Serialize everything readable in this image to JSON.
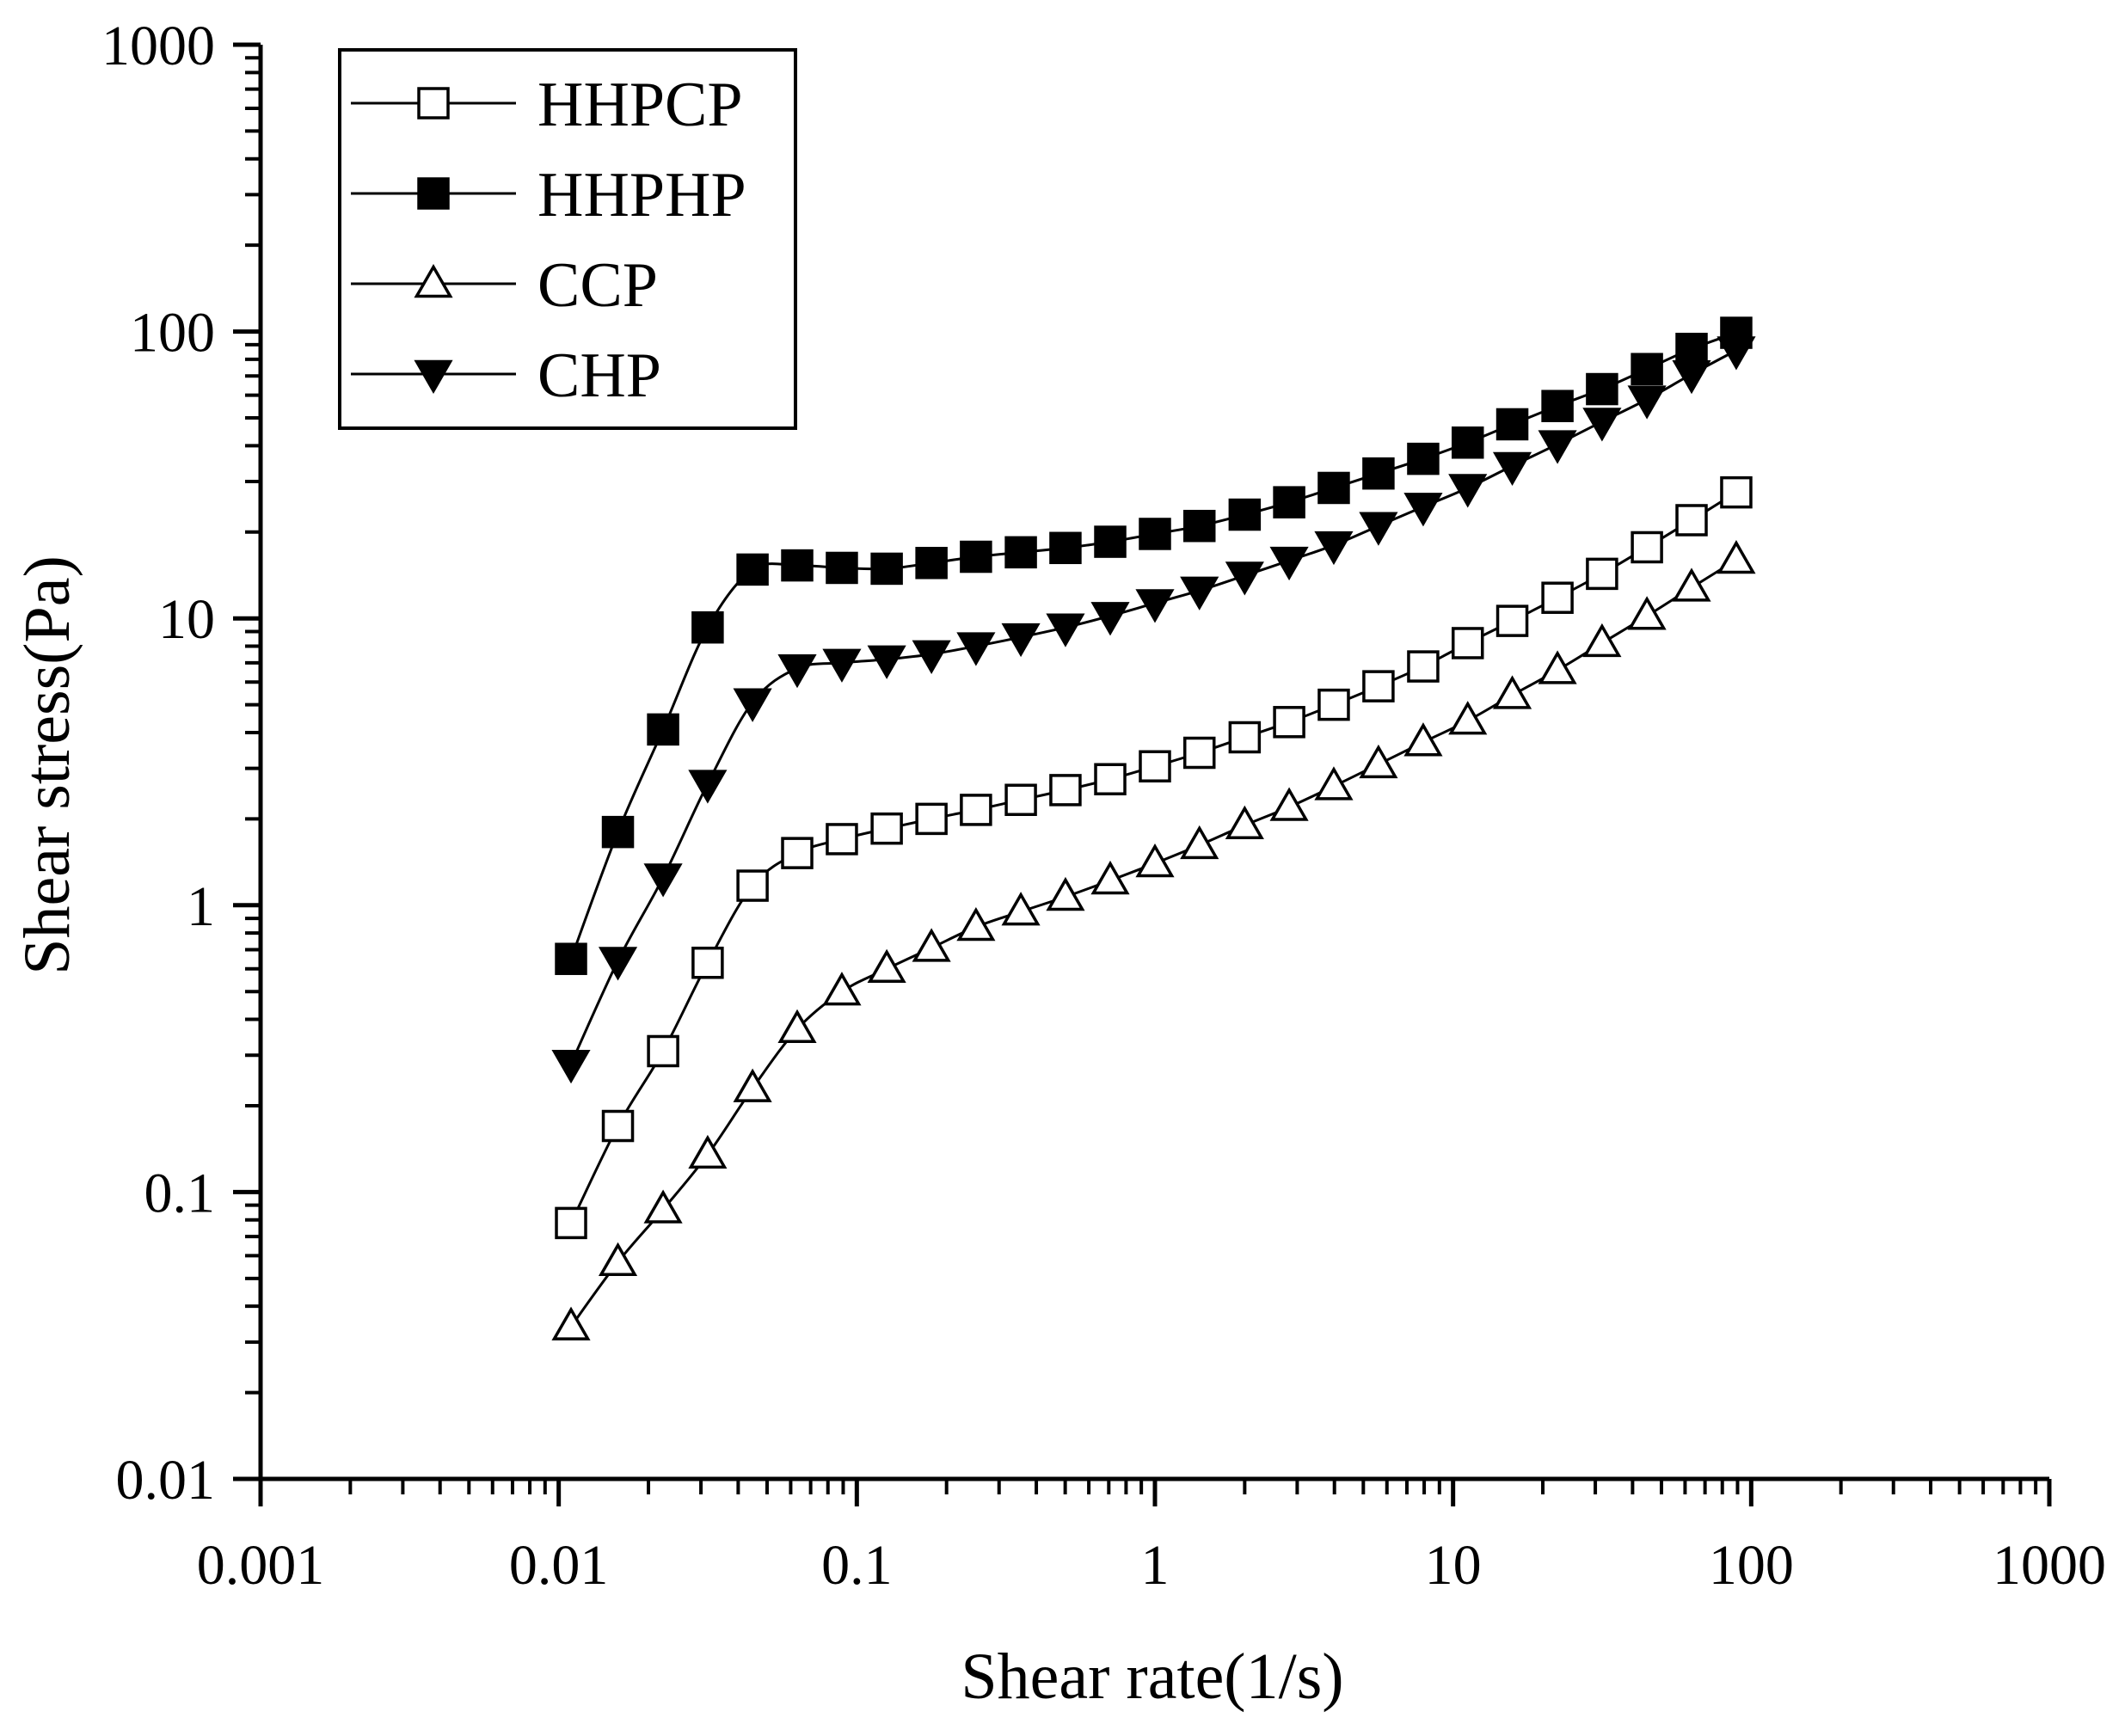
{
  "chart_data": {
    "type": "line",
    "xscale": "log",
    "yscale": "log",
    "title": "",
    "xlabel": "Shear rate(1/s)",
    "ylabel": "Shear stress(Pa)",
    "xlim": [
      0.001,
      1000
    ],
    "ylim": [
      0.01,
      1000
    ],
    "xticks": [
      0.001,
      0.01,
      0.1,
      1,
      10,
      100,
      1000
    ],
    "xtick_labels": [
      "0.001",
      "0.01",
      "0.1",
      "1",
      "10",
      "100",
      "1000"
    ],
    "yticks": [
      0.01,
      0.1,
      1,
      10,
      100,
      1000
    ],
    "ytick_labels": [
      "0.01",
      "0.1",
      "1",
      "10",
      "100",
      "1000"
    ],
    "legend_position": "top-left",
    "x": [
      0.011,
      0.0158,
      0.0224,
      0.0316,
      0.0447,
      0.0631,
      0.0891,
      0.126,
      0.178,
      0.251,
      0.355,
      0.501,
      0.708,
      1.0,
      1.41,
      2.0,
      2.82,
      3.98,
      5.62,
      7.94,
      11.2,
      15.8,
      22.4,
      31.6,
      44.7,
      63.1,
      89.1
    ],
    "series": [
      {
        "name": "HHPCP",
        "marker": "square-open",
        "values": [
          0.078,
          0.17,
          0.31,
          0.63,
          1.17,
          1.52,
          1.7,
          1.85,
          2.0,
          2.15,
          2.33,
          2.52,
          2.75,
          3.05,
          3.4,
          3.85,
          4.35,
          5.0,
          5.8,
          6.8,
          8.2,
          9.8,
          11.8,
          14.3,
          17.7,
          22.0,
          27.5
        ]
      },
      {
        "name": "HHPHP",
        "marker": "square-filled",
        "values": [
          0.65,
          1.8,
          4.1,
          9.3,
          14.8,
          15.3,
          15.0,
          14.9,
          15.6,
          16.4,
          17.0,
          17.6,
          18.5,
          19.7,
          21.0,
          23.0,
          25.4,
          28.5,
          32.0,
          36.0,
          41.0,
          47.5,
          55.0,
          63.0,
          74.0,
          87.0,
          99.0
        ]
      },
      {
        "name": "CCP",
        "marker": "triangle-up-open",
        "values": [
          0.034,
          0.057,
          0.087,
          0.135,
          0.23,
          0.37,
          0.5,
          0.6,
          0.71,
          0.84,
          0.95,
          1.07,
          1.22,
          1.4,
          1.62,
          1.9,
          2.2,
          2.6,
          3.1,
          3.7,
          4.4,
          5.4,
          6.6,
          8.2,
          10.2,
          12.8,
          16.0
        ]
      },
      {
        "name": "CHP",
        "marker": "triangle-down-filled",
        "values": [
          0.28,
          0.64,
          1.25,
          2.65,
          5.1,
          6.7,
          7.0,
          7.2,
          7.5,
          8.0,
          8.6,
          9.3,
          10.2,
          11.3,
          12.5,
          14.1,
          15.9,
          18.0,
          21.0,
          24.5,
          28.5,
          34.0,
          40.5,
          48.5,
          58.0,
          71.0,
          86.0
        ]
      }
    ]
  }
}
